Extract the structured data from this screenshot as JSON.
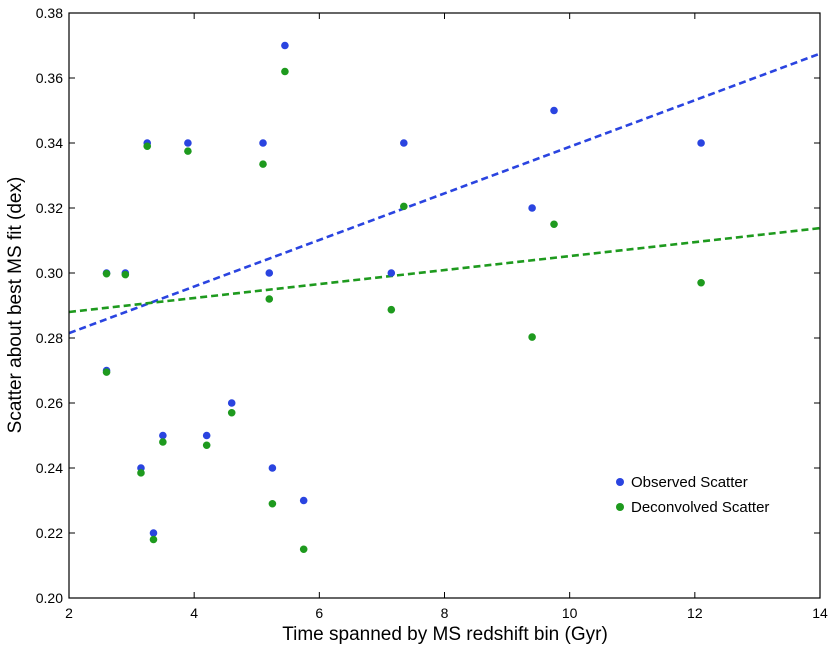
{
  "chart_data": {
    "type": "scatter",
    "title": "",
    "xlabel": "Time spanned by MS redshift bin (Gyr)",
    "ylabel": "Scatter about best MS fit (dex)",
    "xlim": [
      2,
      14
    ],
    "ylim": [
      0.2,
      0.38
    ],
    "xticks": [
      2,
      4,
      6,
      8,
      10,
      12,
      14
    ],
    "yticks": [
      0.2,
      0.22,
      0.24,
      0.26,
      0.28,
      0.3,
      0.32,
      0.34,
      0.36,
      0.38
    ],
    "xtick_labels": [
      "2",
      "4",
      "6",
      "8",
      "10",
      "12",
      "14"
    ],
    "ytick_labels": [
      "0.20",
      "0.22",
      "0.24",
      "0.26",
      "0.28",
      "0.30",
      "0.32",
      "0.34",
      "0.36",
      "0.38"
    ],
    "grid": false,
    "legend_position": "lower-right",
    "colors": {
      "observed": "#2a44e0",
      "deconvolved": "#1e9a1e"
    },
    "series": [
      {
        "name": "Observed Scatter",
        "color": "#2a44e0",
        "x": [
          2.6,
          2.6,
          2.9,
          3.15,
          3.25,
          3.35,
          3.5,
          3.9,
          4.2,
          4.6,
          5.1,
          5.2,
          5.25,
          5.45,
          5.75,
          7.15,
          7.35,
          9.4,
          9.75,
          12.1
        ],
        "y": [
          0.27,
          0.3,
          0.3,
          0.24,
          0.34,
          0.22,
          0.25,
          0.34,
          0.25,
          0.26,
          0.34,
          0.3,
          0.24,
          0.37,
          0.23,
          0.3,
          0.34,
          0.32,
          0.35,
          0.34
        ]
      },
      {
        "name": "Deconvolved Scatter",
        "color": "#1e9a1e",
        "x": [
          2.6,
          2.6,
          2.9,
          3.15,
          3.25,
          3.35,
          3.5,
          3.9,
          4.2,
          4.6,
          5.1,
          5.2,
          5.25,
          5.45,
          5.75,
          7.15,
          7.35,
          9.4,
          9.75,
          12.1
        ],
        "y": [
          0.2695,
          0.2998,
          0.2995,
          0.2385,
          0.339,
          0.218,
          0.248,
          0.3375,
          0.247,
          0.257,
          0.3335,
          0.292,
          0.229,
          0.362,
          0.215,
          0.2887,
          0.3205,
          0.2803,
          0.315,
          0.297
        ]
      }
    ],
    "fits": [
      {
        "name": "Observed Scatter fit",
        "color": "#2a44e0",
        "x": [
          2,
          14
        ],
        "y": [
          0.2815,
          0.3675
        ]
      },
      {
        "name": "Deconvolved Scatter fit",
        "color": "#1e9a1e",
        "x": [
          2,
          14
        ],
        "y": [
          0.288,
          0.3138
        ]
      }
    ]
  }
}
